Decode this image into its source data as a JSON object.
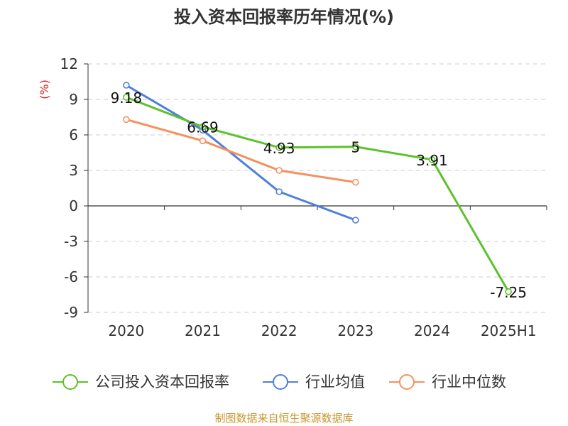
{
  "chart_data": {
    "type": "line",
    "title": "投入资本回报率历年情况(%)",
    "unit": "(%)",
    "categories": [
      "2020",
      "2021",
      "2022",
      "2023",
      "2024",
      "2025H1"
    ],
    "yticks": [
      "12",
      "9",
      "6",
      "3",
      "0",
      "-3",
      "-6",
      "-9"
    ],
    "ylim": [
      -9,
      12
    ],
    "grid": true,
    "legend_position": "bottom",
    "series": [
      {
        "name": "公司投入资本回报率",
        "color": "#5cc12a",
        "values": [
          9.18,
          6.69,
          4.93,
          5,
          3.91,
          -7.25
        ],
        "labels": [
          "9.18",
          "6.69",
          "4.93",
          "5",
          "3.91",
          "-7.25"
        ]
      },
      {
        "name": "行业均值",
        "color": "#4f7fdc",
        "values": [
          10.2,
          6.4,
          1.2,
          -1.2,
          null,
          null
        ]
      },
      {
        "name": "行业中位数",
        "color": "#f59160",
        "values": [
          7.3,
          5.5,
          3.0,
          2.0,
          null,
          null
        ]
      }
    ],
    "source": "制图数据来自恒生聚源数据库"
  }
}
